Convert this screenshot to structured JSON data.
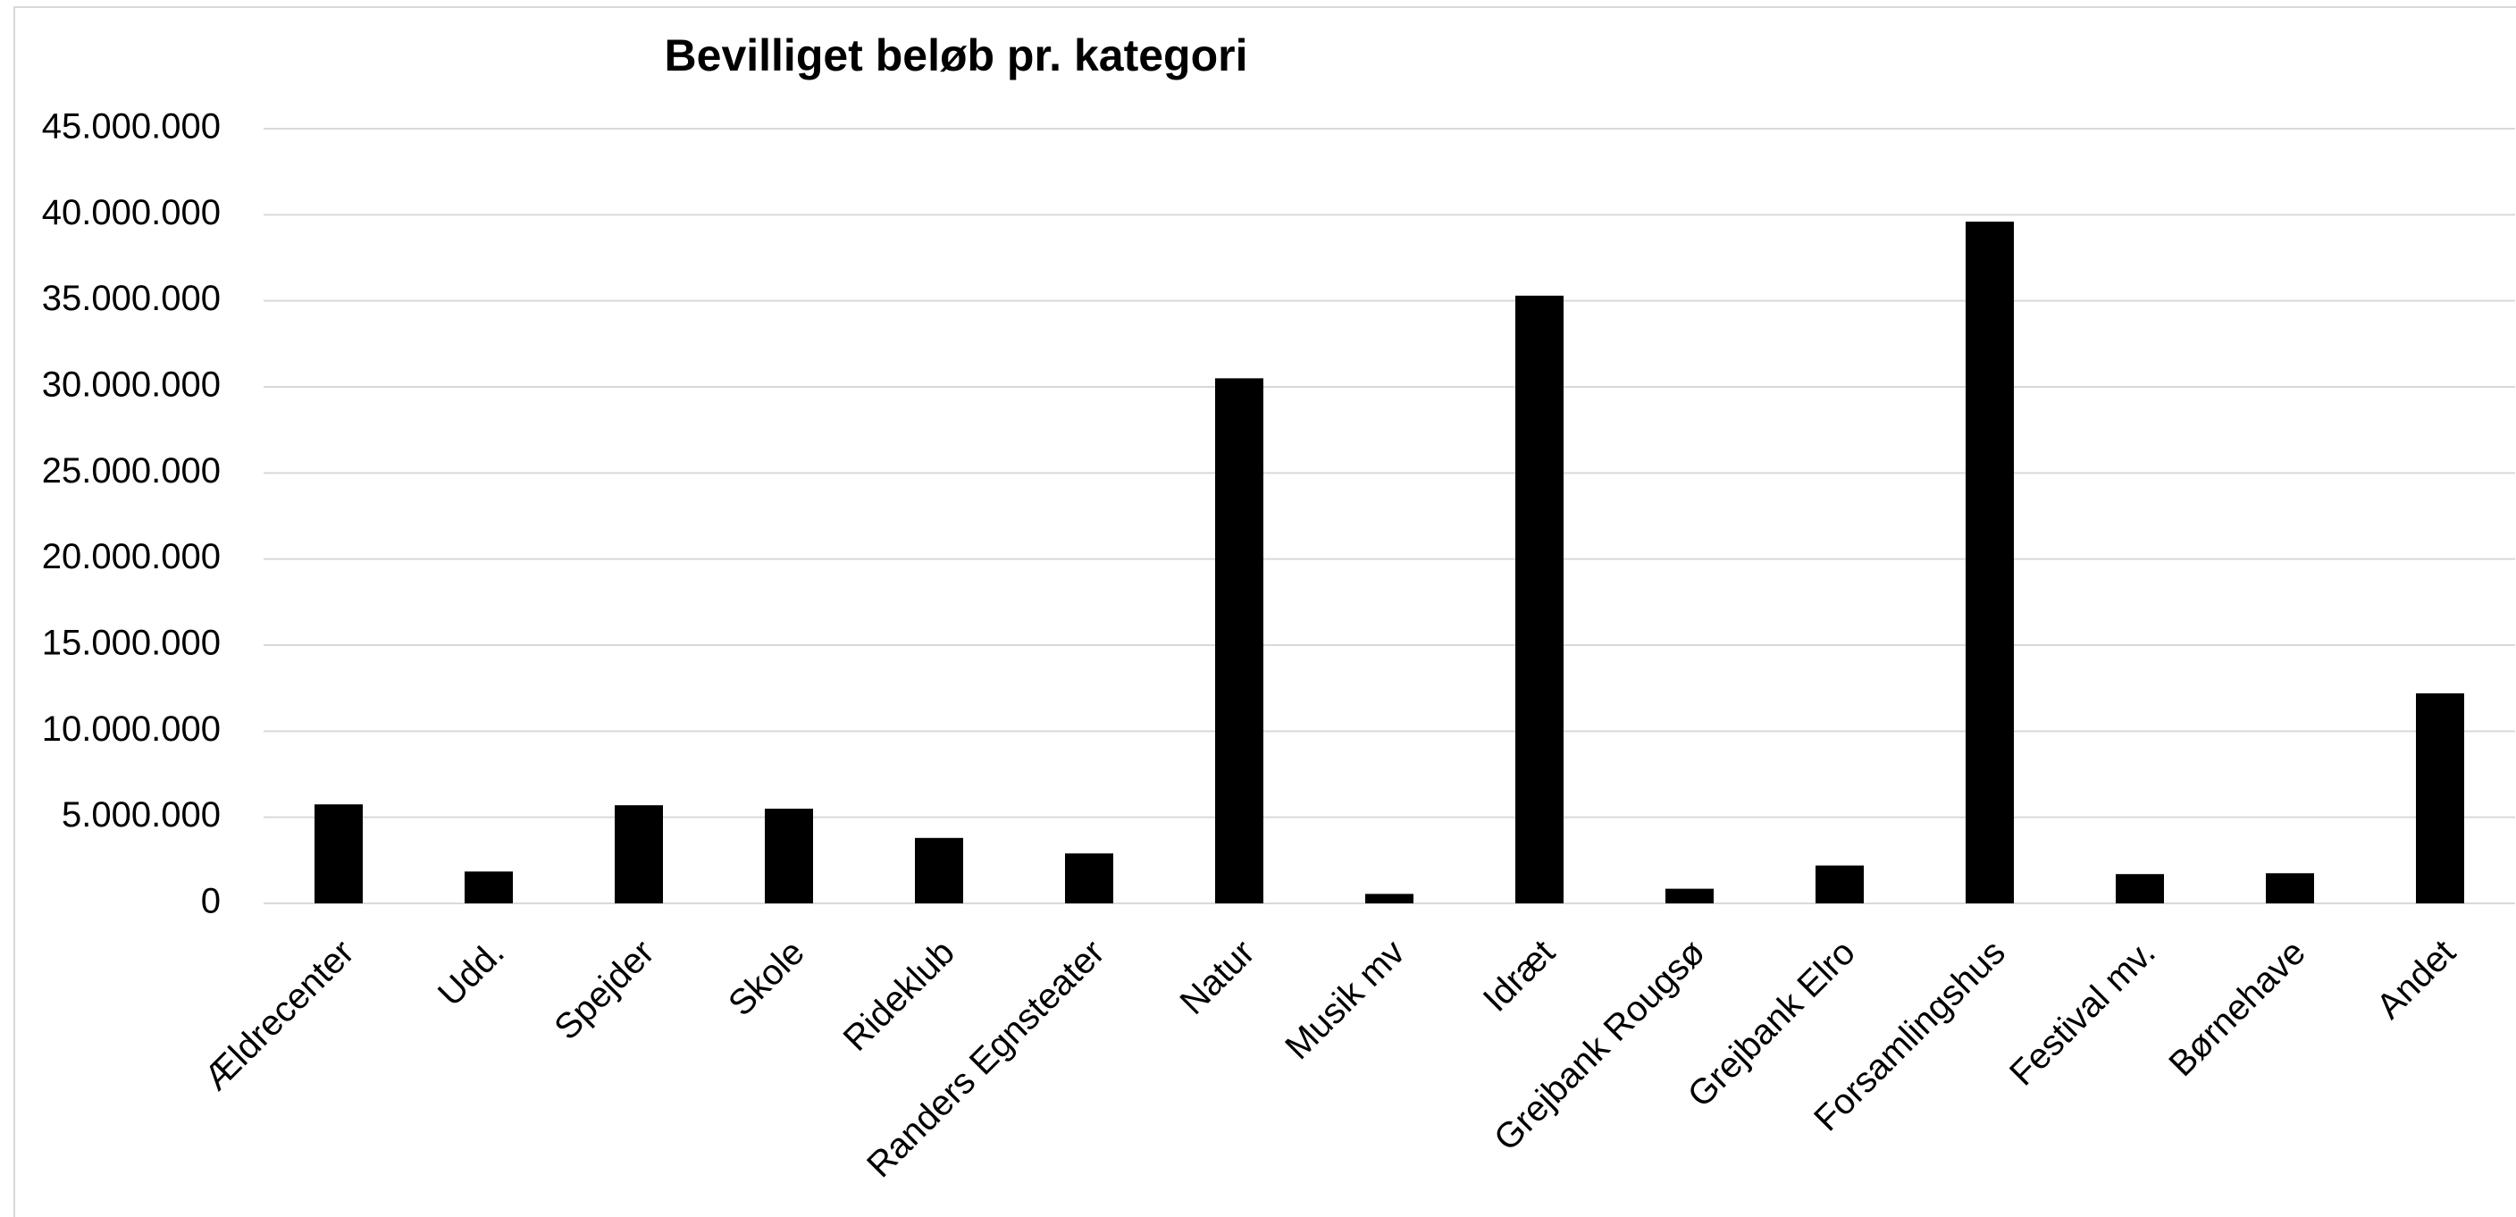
{
  "chart_data": {
    "type": "bar",
    "title": "Bevilliget beløb pr. kategori",
    "categories": [
      "Ældrecenter",
      "Udd.",
      "Spejder",
      "Skole",
      "Rideklub",
      "Randers Egnsteater",
      "Natur",
      "Musik mv",
      "Idræt",
      "Grejbank Rougsø",
      "Grejbank Elro",
      "Forsamlingshus",
      "Festival mv.",
      "Børnehave",
      "Andet"
    ],
    "values": [
      5750000,
      1850000,
      5700000,
      5500000,
      3800000,
      2900000,
      30500000,
      550000,
      35300000,
      850000,
      2200000,
      39600000,
      1700000,
      1750000,
      12200000
    ],
    "color": "#000000",
    "ylim": [
      0,
      45000000
    ],
    "yticks": [
      0,
      {
        "value": 5000000,
        "label": "5.000.000"
      },
      {
        "value": 10000000,
        "label": "10.000.000"
      },
      {
        "value": 15000000,
        "label": "15.000.000"
      },
      {
        "value": 20000000,
        "label": "20.000.000"
      },
      {
        "value": 25000000,
        "label": "25.000.000"
      },
      {
        "value": 30000000,
        "label": "30.000.000"
      },
      {
        "value": 35000000,
        "label": "35.000.000"
      },
      {
        "value": 40000000,
        "label": "40.000.000"
      },
      {
        "value": 45000000,
        "label": "45.000.000"
      }
    ],
    "grid": true
  }
}
